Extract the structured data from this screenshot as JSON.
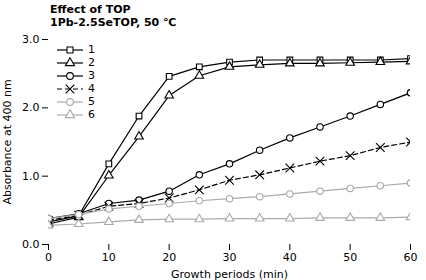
{
  "chart_data": {
    "type": "line",
    "annotations": [
      "Effect of TOP",
      "1Pb-2.5SeTOP, 50 ℃"
    ],
    "xlabel": "Growth periods (min)",
    "ylabel": "Absorbance at 400 nm",
    "xlim": [
      0,
      60
    ],
    "ylim": [
      0.0,
      3.0
    ],
    "xticks": [
      0,
      10,
      20,
      30,
      40,
      50,
      60
    ],
    "yticks": [
      0,
      1,
      2,
      3
    ],
    "legend": "upper left",
    "x": [
      0,
      5,
      10,
      15,
      20,
      25,
      30,
      35,
      40,
      45,
      50,
      55,
      60
    ],
    "series": [
      {
        "name": "1",
        "color": "#000000",
        "marker": "square",
        "line_style": "solid",
        "values": [
          0.33,
          0.42,
          1.18,
          1.88,
          2.46,
          2.6,
          2.67,
          2.7,
          2.7,
          2.7,
          2.7,
          2.7,
          2.72
        ]
      },
      {
        "name": "2",
        "color": "#000000",
        "marker": "triangle",
        "line_style": "solid",
        "values": [
          0.3,
          0.4,
          1.01,
          1.58,
          2.18,
          2.47,
          2.6,
          2.63,
          2.65,
          2.65,
          2.66,
          2.67,
          2.68
        ]
      },
      {
        "name": "3",
        "color": "#000000",
        "marker": "circle",
        "line_style": "solid",
        "values": [
          0.38,
          0.45,
          0.6,
          0.65,
          0.78,
          1.02,
          1.18,
          1.38,
          1.56,
          1.72,
          1.88,
          2.05,
          2.22
        ]
      },
      {
        "name": "4",
        "color": "#000000",
        "marker": "times",
        "line_style": "dashed",
        "values": [
          0.35,
          0.43,
          0.56,
          0.6,
          0.68,
          0.8,
          0.94,
          1.02,
          1.12,
          1.22,
          1.3,
          1.42,
          1.5
        ]
      },
      {
        "name": "5",
        "color": "#aaaaaa",
        "marker": "circle",
        "line_style": "solid",
        "values": [
          0.38,
          0.44,
          0.52,
          0.56,
          0.6,
          0.64,
          0.67,
          0.7,
          0.74,
          0.78,
          0.82,
          0.86,
          0.9
        ]
      },
      {
        "name": "6",
        "color": "#aaaaaa",
        "marker": "triangle",
        "line_style": "solid",
        "values": [
          0.28,
          0.3,
          0.33,
          0.36,
          0.37,
          0.37,
          0.38,
          0.38,
          0.38,
          0.39,
          0.39,
          0.39,
          0.4
        ]
      }
    ]
  }
}
